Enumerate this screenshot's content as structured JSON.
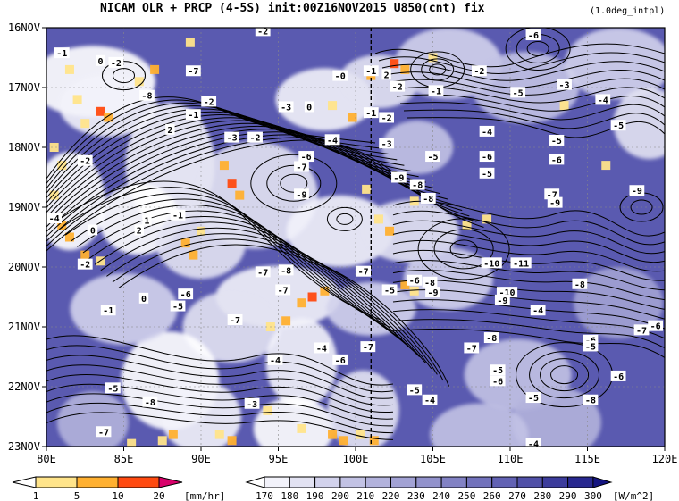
{
  "chart_data": {
    "type": "heatmap",
    "title": "NICAM  OLR + PRCP (4-5S) init:00Z16NOV2015 U850(cnt) fix",
    "subtitle": "(1.0deg_intpl)",
    "x_axis": {
      "ticks": [
        "80E",
        "85E",
        "90E",
        "95E",
        "100E",
        "105E",
        "110E",
        "115E",
        "120E"
      ],
      "range": [
        80,
        120
      ]
    },
    "y_axis": {
      "ticks": [
        "16NOV",
        "17NOV",
        "18NOV",
        "19NOV",
        "20NOV",
        "21NOV",
        "22NOV",
        "23NOV"
      ],
      "range": [
        "16NOV",
        "23NOV"
      ]
    },
    "reference_line_lon": 101,
    "prcp_colorbar": {
      "levels": [
        "1",
        "5",
        "10",
        "20"
      ],
      "unit": "[mm/hr]",
      "colors": [
        "#ffffff",
        "#ffe48a",
        "#ffb030",
        "#ff4a10",
        "#d8006a"
      ]
    },
    "olr_colorbar": {
      "levels": [
        "170",
        "180",
        "190",
        "200",
        "210",
        "220",
        "230",
        "240",
        "250",
        "260",
        "270",
        "280",
        "290",
        "300"
      ],
      "unit": "[W/m^2]",
      "colors": [
        "#ffffff",
        "#f2f2fa",
        "#e2e2f2",
        "#d2d2ec",
        "#c2c2e4",
        "#b2b2dc",
        "#a2a2d4",
        "#9292cc",
        "#8282c4",
        "#7272bc",
        "#6262b4",
        "#5050a8",
        "#3c3c9c",
        "#282890",
        "#141480"
      ]
    },
    "u850_contour_labels": [
      {
        "v": "-2",
        "lon": 94,
        "d": 16.05
      },
      {
        "v": "-6",
        "lon": 111.5,
        "d": 16.12
      },
      {
        "v": "-1",
        "lon": 81,
        "d": 16.42
      },
      {
        "v": "0",
        "lon": 83.5,
        "d": 16.55
      },
      {
        "v": "-2",
        "lon": 84.5,
        "d": 16.58
      },
      {
        "v": "-7",
        "lon": 89.5,
        "d": 16.72
      },
      {
        "v": "-1",
        "lon": 101,
        "d": 16.72
      },
      {
        "v": "-0",
        "lon": 99,
        "d": 16.8
      },
      {
        "v": "2",
        "lon": 102,
        "d": 16.78
      },
      {
        "v": "-2",
        "lon": 108,
        "d": 16.72
      },
      {
        "v": "-3",
        "lon": 113.5,
        "d": 16.95
      },
      {
        "v": "-2",
        "lon": 102.7,
        "d": 16.98
      },
      {
        "v": "-1",
        "lon": 105.2,
        "d": 17.05
      },
      {
        "v": "-5",
        "lon": 110.5,
        "d": 17.08
      },
      {
        "v": "-4",
        "lon": 116,
        "d": 17.2
      },
      {
        "v": "-8",
        "lon": 86.5,
        "d": 17.13
      },
      {
        "v": "-2",
        "lon": 90.5,
        "d": 17.23
      },
      {
        "v": "-3",
        "lon": 95.5,
        "d": 17.32
      },
      {
        "v": "0",
        "lon": 97,
        "d": 17.32
      },
      {
        "v": "-1",
        "lon": 101,
        "d": 17.42
      },
      {
        "v": "-2",
        "lon": 102,
        "d": 17.5
      },
      {
        "v": "-1",
        "lon": 89.5,
        "d": 17.45
      },
      {
        "v": "2",
        "lon": 88,
        "d": 17.7
      },
      {
        "v": "-3",
        "lon": 92,
        "d": 17.83
      },
      {
        "v": "-2",
        "lon": 93.5,
        "d": 17.83
      },
      {
        "v": "-4",
        "lon": 98.5,
        "d": 17.87
      },
      {
        "v": "-4",
        "lon": 108.5,
        "d": 17.73
      },
      {
        "v": "-5",
        "lon": 113,
        "d": 17.88
      },
      {
        "v": "-5",
        "lon": 117,
        "d": 17.63
      },
      {
        "v": "-3",
        "lon": 102,
        "d": 17.93
      },
      {
        "v": "-6",
        "lon": 96.8,
        "d": 18.15
      },
      {
        "v": "-5",
        "lon": 105,
        "d": 18.15
      },
      {
        "v": "-6",
        "lon": 108.5,
        "d": 18.15
      },
      {
        "v": "-6",
        "lon": 113,
        "d": 18.2
      },
      {
        "v": "-2",
        "lon": 82.5,
        "d": 18.22
      },
      {
        "v": "-7",
        "lon": 96.5,
        "d": 18.32
      },
      {
        "v": "-5",
        "lon": 108.5,
        "d": 18.43
      },
      {
        "v": "-9",
        "lon": 102.8,
        "d": 18.5
      },
      {
        "v": "-8",
        "lon": 104,
        "d": 18.62
      },
      {
        "v": "-9",
        "lon": 96.5,
        "d": 18.78
      },
      {
        "v": "-8",
        "lon": 104.7,
        "d": 18.85
      },
      {
        "v": "-7",
        "lon": 112.7,
        "d": 18.78
      },
      {
        "v": "-9",
        "lon": 112.9,
        "d": 18.92
      },
      {
        "v": "-9",
        "lon": 118.2,
        "d": 18.72
      },
      {
        "v": "-4",
        "lon": 80.5,
        "d": 19.18
      },
      {
        "v": "1",
        "lon": 86.5,
        "d": 19.22
      },
      {
        "v": "-1",
        "lon": 88.5,
        "d": 19.13
      },
      {
        "v": "2",
        "lon": 86,
        "d": 19.38
      },
      {
        "v": "0",
        "lon": 83,
        "d": 19.38
      },
      {
        "v": "-2",
        "lon": 82.5,
        "d": 19.95
      },
      {
        "v": "-7",
        "lon": 94,
        "d": 20.08
      },
      {
        "v": "-8",
        "lon": 95.5,
        "d": 20.05
      },
      {
        "v": "-7",
        "lon": 100.5,
        "d": 20.07
      },
      {
        "v": "-10",
        "lon": 108.8,
        "d": 19.93
      },
      {
        "v": "-11",
        "lon": 110.7,
        "d": 19.93
      },
      {
        "v": "-6",
        "lon": 103.8,
        "d": 20.22
      },
      {
        "v": "-8",
        "lon": 104.8,
        "d": 20.25
      },
      {
        "v": "-5",
        "lon": 102.2,
        "d": 20.38
      },
      {
        "v": "-9",
        "lon": 105,
        "d": 20.42
      },
      {
        "v": "-7",
        "lon": 95.3,
        "d": 20.38
      },
      {
        "v": "-6",
        "lon": 89,
        "d": 20.45
      },
      {
        "v": "-5",
        "lon": 88.5,
        "d": 20.65
      },
      {
        "v": "-8",
        "lon": 114.5,
        "d": 20.28
      },
      {
        "v": "-10",
        "lon": 109.8,
        "d": 20.42
      },
      {
        "v": "-9",
        "lon": 109.5,
        "d": 20.55
      },
      {
        "v": "0",
        "lon": 86.3,
        "d": 20.52
      },
      {
        "v": "-1",
        "lon": 84,
        "d": 20.72
      },
      {
        "v": "-7",
        "lon": 92.2,
        "d": 20.88
      },
      {
        "v": "-4",
        "lon": 111.8,
        "d": 20.72
      },
      {
        "v": "-7",
        "lon": 118.5,
        "d": 21.05
      },
      {
        "v": "-6",
        "lon": 119.4,
        "d": 20.98
      },
      {
        "v": "-8",
        "lon": 108.8,
        "d": 21.18
      },
      {
        "v": "-7",
        "lon": 100.8,
        "d": 21.33
      },
      {
        "v": "-4",
        "lon": 97.8,
        "d": 21.35
      },
      {
        "v": "-6",
        "lon": 115.2,
        "d": 21.22
      },
      {
        "v": "-5",
        "lon": 115.2,
        "d": 21.32
      },
      {
        "v": "-7",
        "lon": 107.5,
        "d": 21.35
      },
      {
        "v": "-4",
        "lon": 94.8,
        "d": 21.55
      },
      {
        "v": "-6",
        "lon": 99,
        "d": 21.55
      },
      {
        "v": "-5",
        "lon": 109.2,
        "d": 21.72
      },
      {
        "v": "-6",
        "lon": 109.2,
        "d": 21.9
      },
      {
        "v": "-6",
        "lon": 117,
        "d": 21.82
      },
      {
        "v": "-5",
        "lon": 84.3,
        "d": 22.02
      },
      {
        "v": "-5",
        "lon": 103.8,
        "d": 22.05
      },
      {
        "v": "-4",
        "lon": 104.8,
        "d": 22.22
      },
      {
        "v": "-8",
        "lon": 86.7,
        "d": 22.25
      },
      {
        "v": "-3",
        "lon": 93.3,
        "d": 22.28
      },
      {
        "v": "-5",
        "lon": 111.5,
        "d": 22.18
      },
      {
        "v": "-8",
        "lon": 115.2,
        "d": 22.22
      },
      {
        "v": "-7",
        "lon": 83.7,
        "d": 22.75
      },
      {
        "v": "-4",
        "lon": 111.5,
        "d": 22.95
      }
    ]
  }
}
